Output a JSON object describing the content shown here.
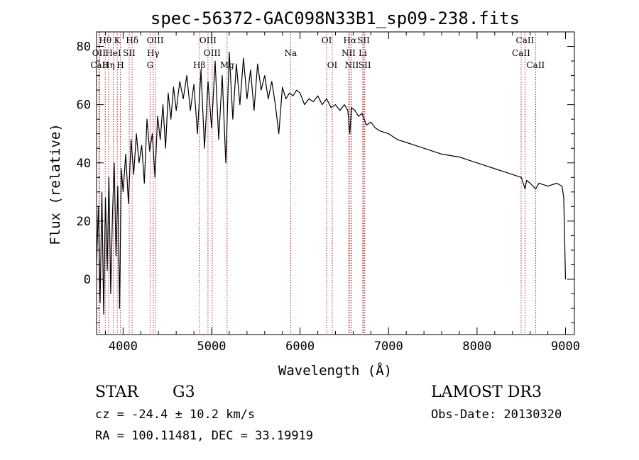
{
  "chart_data": {
    "type": "line",
    "title": "spec-56372-GAC098N33B1_sp09-238.fits",
    "xlabel": "Wavelength (Å)",
    "ylabel": "Flux (relative)",
    "xlim": [
      3700,
      9100
    ],
    "ylim": [
      -19,
      85
    ],
    "xticks": [
      4000,
      5000,
      6000,
      7000,
      8000,
      9000
    ],
    "yticks": [
      0,
      20,
      40,
      60,
      80
    ],
    "line_color": "#000000",
    "marker_color": "#b22222",
    "series": [
      {
        "name": "flux",
        "x": [
          3700,
          3720,
          3740,
          3760,
          3780,
          3800,
          3820,
          3840,
          3860,
          3880,
          3900,
          3920,
          3940,
          3960,
          3980,
          4000,
          4030,
          4060,
          4090,
          4120,
          4150,
          4180,
          4210,
          4240,
          4270,
          4300,
          4330,
          4360,
          4390,
          4420,
          4450,
          4480,
          4510,
          4540,
          4570,
          4600,
          4640,
          4680,
          4720,
          4760,
          4800,
          4840,
          4880,
          4920,
          4960,
          5000,
          5040,
          5080,
          5120,
          5160,
          5200,
          5240,
          5280,
          5320,
          5360,
          5400,
          5440,
          5480,
          5520,
          5560,
          5600,
          5640,
          5680,
          5720,
          5760,
          5800,
          5840,
          5880,
          5920,
          5960,
          6000,
          6050,
          6100,
          6150,
          6200,
          6250,
          6300,
          6350,
          6400,
          6450,
          6500,
          6540,
          6563,
          6580,
          6620,
          6660,
          6700,
          6750,
          6800,
          6850,
          6900,
          7000,
          7100,
          7200,
          7300,
          7400,
          7500,
          7600,
          7700,
          7800,
          7900,
          8000,
          8100,
          8200,
          8300,
          8400,
          8500,
          8542,
          8560,
          8600,
          8662,
          8700,
          8800,
          8900,
          8960,
          8980,
          9000
        ],
        "y": [
          5,
          25,
          -8,
          30,
          -12,
          28,
          3,
          35,
          -5,
          22,
          40,
          8,
          32,
          -10,
          38,
          30,
          43,
          26,
          48,
          36,
          50,
          40,
          46,
          33,
          55,
          44,
          50,
          35,
          56,
          48,
          60,
          45,
          64,
          55,
          66,
          58,
          68,
          62,
          70,
          58,
          67,
          50,
          72,
          45,
          68,
          52,
          75,
          48,
          70,
          40,
          78,
          55,
          74,
          60,
          76,
          62,
          72,
          58,
          74,
          65,
          70,
          62,
          68,
          60,
          50,
          66,
          62,
          64,
          63,
          65,
          64,
          60,
          62,
          61,
          63,
          60,
          62,
          59,
          60,
          58,
          60,
          58,
          50,
          59,
          58,
          56,
          57,
          53,
          54,
          52,
          51,
          50,
          48,
          47,
          46,
          45,
          44,
          43,
          42.5,
          42,
          41,
          40,
          39,
          38,
          37,
          36,
          35,
          31,
          34,
          33,
          31,
          33,
          32,
          33,
          32,
          28,
          0
        ]
      }
    ],
    "line_markers": [
      {
        "name": "Hθ",
        "wavelength": 3798,
        "row": 0
      },
      {
        "name": "OII",
        "wavelength": 3727,
        "row": 1
      },
      {
        "name": "CaII",
        "wavelength": 3734,
        "row": 2
      },
      {
        "name": "Hη",
        "wavelength": 3835,
        "row": 2
      },
      {
        "name": "K",
        "wavelength": 3934,
        "row": 0
      },
      {
        "name": "HeI",
        "wavelength": 3889,
        "row": 1
      },
      {
        "name": "H",
        "wavelength": 3969,
        "row": 2
      },
      {
        "name": "Hδ",
        "wavelength": 4102,
        "row": 0
      },
      {
        "name": "SII",
        "wavelength": 4069,
        "row": 1
      },
      {
        "name": "OIII",
        "wavelength": 4363,
        "row": 0
      },
      {
        "name": "Hγ",
        "wavelength": 4340,
        "row": 1
      },
      {
        "name": "G",
        "wavelength": 4305,
        "row": 2
      },
      {
        "name": "Hβ",
        "wavelength": 4861,
        "row": 2
      },
      {
        "name": "OIII",
        "wavelength": 4959,
        "row": 0
      },
      {
        "name": "OIII",
        "wavelength": 5007,
        "row": 1
      },
      {
        "name": "Mg",
        "wavelength": 5175,
        "row": 2
      },
      {
        "name": "Na",
        "wavelength": 5893,
        "row": 1
      },
      {
        "name": "OI",
        "wavelength": 6300,
        "row": 0
      },
      {
        "name": "OI",
        "wavelength": 6364,
        "row": 2
      },
      {
        "name": "Hα",
        "wavelength": 6563,
        "row": 0
      },
      {
        "name": "NII",
        "wavelength": 6548,
        "row": 1
      },
      {
        "name": "NII",
        "wavelength": 6584,
        "row": 2
      },
      {
        "name": "SII",
        "wavelength": 6717,
        "row": 0
      },
      {
        "name": "Li",
        "wavelength": 6708,
        "row": 1
      },
      {
        "name": "SII",
        "wavelength": 6731,
        "row": 2
      },
      {
        "name": "CaII",
        "wavelength": 8542,
        "row": 0
      },
      {
        "name": "CaII",
        "wavelength": 8498,
        "row": 1
      },
      {
        "name": "CaII",
        "wavelength": 8662,
        "row": 2
      }
    ]
  },
  "info": {
    "object_class": "STAR",
    "subclass": "G3",
    "redshift": "cz = -24.4 ± 10.2 km/s",
    "coords": "RA = 100.11481, DEC =  33.19919",
    "survey": "LAMOST DR3",
    "obs_date": "Obs-Date: 20130320"
  }
}
